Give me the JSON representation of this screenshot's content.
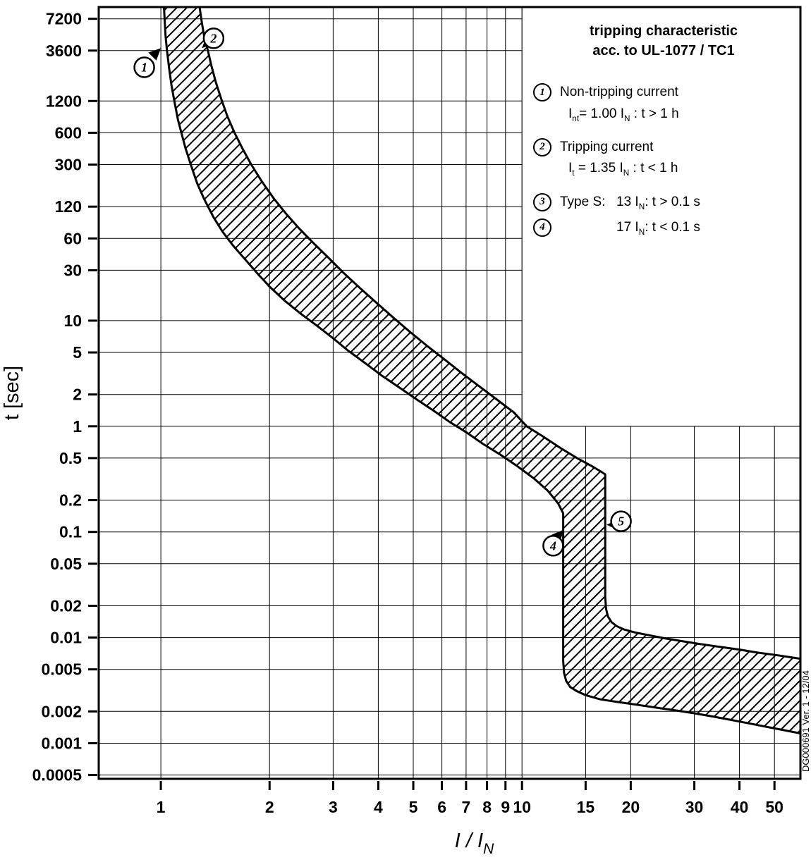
{
  "chart_data": {
    "type": "area",
    "title": "tripping characteristic",
    "subtitle": "acc. to UL-1077 / TC1",
    "xlabel": "I / I_{N}",
    "ylabel": "t [sec]",
    "x_scale": "log",
    "y_scale": "log",
    "xlim": [
      0.673,
      59
    ],
    "ylim": [
      0.00046,
      9300
    ],
    "grid": true,
    "legend_position": "top-right",
    "colors": {
      "ink": "#000000",
      "background": "#ffffff"
    },
    "x_ticks": [
      {
        "v": 1,
        "label": "1"
      },
      {
        "v": 2,
        "label": "2"
      },
      {
        "v": 3,
        "label": "3"
      },
      {
        "v": 4,
        "label": "4"
      },
      {
        "v": 5,
        "label": "5"
      },
      {
        "v": 6,
        "label": "6"
      },
      {
        "v": 7,
        "label": "7"
      },
      {
        "v": 8,
        "label": "8"
      },
      {
        "v": 9,
        "label": "9"
      },
      {
        "v": 10,
        "label": "10"
      },
      {
        "v": 15,
        "label": "15"
      },
      {
        "v": 20,
        "label": "20"
      },
      {
        "v": 30,
        "label": "30"
      },
      {
        "v": 40,
        "label": "40"
      },
      {
        "v": 50,
        "label": "50"
      }
    ],
    "y_ticks": [
      {
        "v": 7200,
        "label": "7200"
      },
      {
        "v": 3600,
        "label": "3600"
      },
      {
        "v": 1200,
        "label": "1200"
      },
      {
        "v": 600,
        "label": "600"
      },
      {
        "v": 300,
        "label": "300"
      },
      {
        "v": 120,
        "label": "120"
      },
      {
        "v": 60,
        "label": "60"
      },
      {
        "v": 30,
        "label": "30"
      },
      {
        "v": 10,
        "label": "10"
      },
      {
        "v": 5,
        "label": "5"
      },
      {
        "v": 2,
        "label": "2"
      },
      {
        "v": 1,
        "label": "1"
      },
      {
        "v": 0.5,
        "label": "0.5"
      },
      {
        "v": 0.2,
        "label": "0.2"
      },
      {
        "v": 0.1,
        "label": "0.1"
      },
      {
        "v": 0.05,
        "label": "0.05"
      },
      {
        "v": 0.02,
        "label": "0.02"
      },
      {
        "v": 0.01,
        "label": "0.01"
      },
      {
        "v": 0.005,
        "label": "0.005"
      },
      {
        "v": 0.002,
        "label": "0.002"
      },
      {
        "v": 0.001,
        "label": "0.001"
      },
      {
        "v": 0.0005,
        "label": "0.0005"
      }
    ],
    "band": {
      "label": "tripping range (hatched)",
      "lower": [
        [
          1.02,
          9300
        ],
        [
          1.03,
          5000
        ],
        [
          1.04,
          3600
        ],
        [
          1.055,
          2400
        ],
        [
          1.07,
          1700
        ],
        [
          1.09,
          1200
        ],
        [
          1.115,
          800
        ],
        [
          1.14,
          600
        ],
        [
          1.17,
          430
        ],
        [
          1.21,
          300
        ],
        [
          1.26,
          200
        ],
        [
          1.32,
          140
        ],
        [
          1.4,
          95
        ],
        [
          1.48,
          70
        ],
        [
          1.58,
          52
        ],
        [
          1.7,
          39
        ],
        [
          1.85,
          28
        ],
        [
          2.0,
          21
        ],
        [
          2.2,
          15.5
        ],
        [
          2.45,
          11.5
        ],
        [
          2.7,
          9.0
        ],
        [
          3.0,
          6.8
        ],
        [
          3.3,
          5.2
        ],
        [
          3.7,
          3.9
        ],
        [
          4.1,
          3.0
        ],
        [
          4.6,
          2.3
        ],
        [
          5.1,
          1.8
        ],
        [
          5.7,
          1.4
        ],
        [
          6.3,
          1.1
        ],
        [
          7.0,
          0.88
        ],
        [
          7.8,
          0.68
        ],
        [
          8.7,
          0.54
        ],
        [
          9.7,
          0.42
        ],
        [
          10.8,
          0.32
        ],
        [
          11.8,
          0.245
        ],
        [
          12.6,
          0.185
        ],
        [
          13.0,
          0.15
        ],
        [
          13.0,
          0.006
        ],
        [
          13.08,
          0.0046
        ],
        [
          13.25,
          0.0039
        ],
        [
          13.6,
          0.0034
        ],
        [
          14.2,
          0.0031
        ],
        [
          15.0,
          0.00285
        ],
        [
          16.5,
          0.0026
        ],
        [
          18.5,
          0.00245
        ],
        [
          21,
          0.0023
        ],
        [
          24,
          0.00215
        ],
        [
          27,
          0.00203
        ],
        [
          30,
          0.00192
        ],
        [
          34,
          0.00178
        ],
        [
          38,
          0.00166
        ],
        [
          43,
          0.00153
        ],
        [
          48,
          0.00142
        ],
        [
          53,
          0.00133
        ],
        [
          59,
          0.00124
        ]
      ],
      "upper": [
        [
          1.28,
          9300
        ],
        [
          1.3,
          6500
        ],
        [
          1.32,
          4800
        ],
        [
          1.35,
          3600
        ],
        [
          1.38,
          2600
        ],
        [
          1.42,
          1800
        ],
        [
          1.47,
          1250
        ],
        [
          1.53,
          850
        ],
        [
          1.6,
          600
        ],
        [
          1.68,
          430
        ],
        [
          1.78,
          300
        ],
        [
          1.9,
          210
        ],
        [
          2.05,
          145
        ],
        [
          2.22,
          103
        ],
        [
          2.42,
          74
        ],
        [
          2.65,
          54
        ],
        [
          2.92,
          39
        ],
        [
          3.2,
          28.5
        ],
        [
          3.55,
          20.5
        ],
        [
          3.95,
          14.8
        ],
        [
          4.4,
          10.7
        ],
        [
          4.9,
          7.8
        ],
        [
          5.45,
          5.8
        ],
        [
          6.1,
          4.3
        ],
        [
          6.8,
          3.2
        ],
        [
          7.6,
          2.4
        ],
        [
          8.5,
          1.8
        ],
        [
          9.5,
          1.35
        ],
        [
          10.3,
          1.0
        ],
        [
          11.5,
          0.79
        ],
        [
          12.8,
          0.62
        ],
        [
          14.2,
          0.5
        ],
        [
          15.6,
          0.42
        ],
        [
          16.6,
          0.37
        ],
        [
          17.0,
          0.35
        ],
        [
          17.0,
          0.024
        ],
        [
          17.1,
          0.0185
        ],
        [
          17.3,
          0.0158
        ],
        [
          17.7,
          0.014
        ],
        [
          18.3,
          0.0128
        ],
        [
          19.2,
          0.0119
        ],
        [
          20.5,
          0.0112
        ],
        [
          22.5,
          0.0105
        ],
        [
          25,
          0.0098
        ],
        [
          28,
          0.0092
        ],
        [
          31,
          0.0087
        ],
        [
          35,
          0.0082
        ],
        [
          40,
          0.0077
        ],
        [
          45,
          0.0072
        ],
        [
          51,
          0.0068
        ],
        [
          59,
          0.0063
        ]
      ]
    },
    "markers": [
      {
        "num": "1",
        "x": 0.9,
        "t": 2500,
        "pointer": {
          "x": 1.0,
          "t": 3800,
          "rot": -45
        }
      },
      {
        "num": "2",
        "x": 1.4,
        "t": 4700,
        "pointer": {
          "x": 1.3,
          "t": 3800,
          "rot": 135
        }
      },
      {
        "num": "4",
        "x": 12.2,
        "t": 0.074,
        "pointer": {
          "x": 13.05,
          "t": 0.105,
          "rot": -48
        }
      },
      {
        "num": "5",
        "x": 18.8,
        "t": 0.126,
        "pointer": {
          "x": 17.15,
          "t": 0.117,
          "rot": 180
        }
      }
    ],
    "legend": {
      "title_line1": "tripping characteristic",
      "title_line2": "acc. to UL-1077 / TC1",
      "items": [
        {
          "num": "1",
          "title": "Non-tripping current",
          "formula": "I_{nt}= 1.00 I_{N} : t > 1 h"
        },
        {
          "num": "2",
          "title": "Tripping current",
          "formula": "I_{t} = 1.35 I_{N} : t < 1 h"
        },
        {
          "num": "3",
          "label": "Type S:",
          "value": "13 I_{N}: t > 0.1 s"
        },
        {
          "num": "4",
          "label": "",
          "value": "17 I_{N}: t < 0.1 s"
        }
      ]
    },
    "watermark": "DG000691  Ver. 1 - 12/04"
  }
}
